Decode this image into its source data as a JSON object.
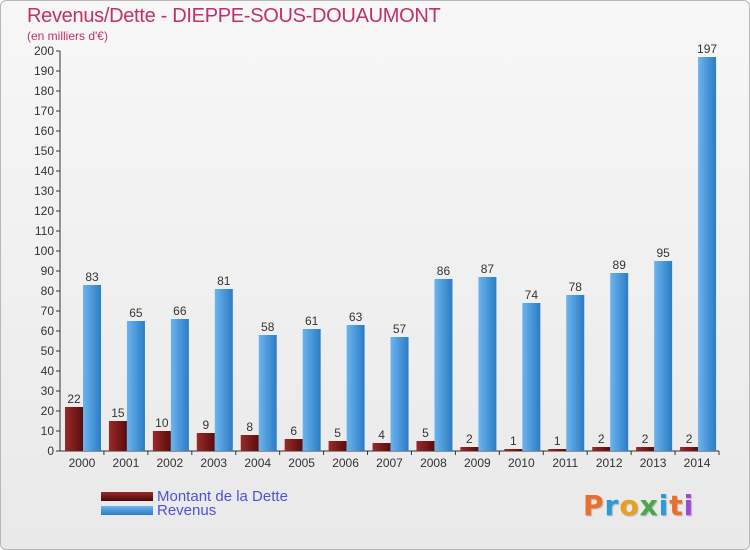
{
  "chart_data": {
    "type": "bar",
    "title": "Revenus/Dette - DIEPPE-SOUS-DOUAUMONT",
    "subtitle": "(en milliers d'€)",
    "xlabel": "",
    "ylabel": "",
    "ylim": [
      0,
      200
    ],
    "ytick_step": 10,
    "grid": false,
    "categories": [
      "2000",
      "2001",
      "2002",
      "2003",
      "2004",
      "2005",
      "2006",
      "2007",
      "2008",
      "2009",
      "2010",
      "2011",
      "2012",
      "2013",
      "2014"
    ],
    "series": [
      {
        "name": "Montant de la Dette",
        "color": "#7a1616",
        "values": [
          22,
          15,
          10,
          9,
          8,
          6,
          5,
          4,
          5,
          2,
          1,
          1,
          2,
          2,
          2
        ]
      },
      {
        "name": "Revenus",
        "color": "#3a8fd8",
        "values": [
          83,
          65,
          66,
          81,
          58,
          61,
          63,
          57,
          86,
          87,
          74,
          78,
          89,
          95,
          197
        ]
      }
    ],
    "legend_position": "bottom-left"
  },
  "branding": {
    "logo_letters": [
      "P",
      "r",
      "o",
      "x",
      "i",
      "t",
      "i"
    ],
    "logo_colors": [
      "#e8702a",
      "#2a9ad8",
      "#e8a020",
      "#4aa84a",
      "#2a9ad8",
      "#e8702a",
      "#9a4ad8"
    ]
  }
}
